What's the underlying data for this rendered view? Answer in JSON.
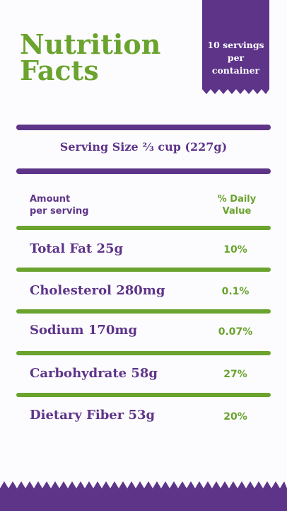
{
  "title": {
    "line1": "Nutrition",
    "line2": "Facts"
  },
  "ribbon": {
    "line1": "10 servings",
    "line2": "per",
    "line3": "container"
  },
  "serving_size": "Serving Size ⅔ cup (227g)",
  "header": {
    "left1": "Amount",
    "left2": "per serving",
    "right1": "% Daily",
    "right2": "Value"
  },
  "rows": [
    {
      "name": "Total Fat 25g",
      "value": "10%"
    },
    {
      "name": "Cholesterol 280mg",
      "value": "0.1%"
    },
    {
      "name": "Sodium 170mg",
      "value": "0.07%"
    },
    {
      "name": "Carbohydrate 58g",
      "value": "27%"
    },
    {
      "name": "Dietary Fiber 53g",
      "value": "20%"
    }
  ],
  "colors": {
    "purple": "#5e3489",
    "green": "#6aa32e",
    "background": "#fcfcfe"
  }
}
